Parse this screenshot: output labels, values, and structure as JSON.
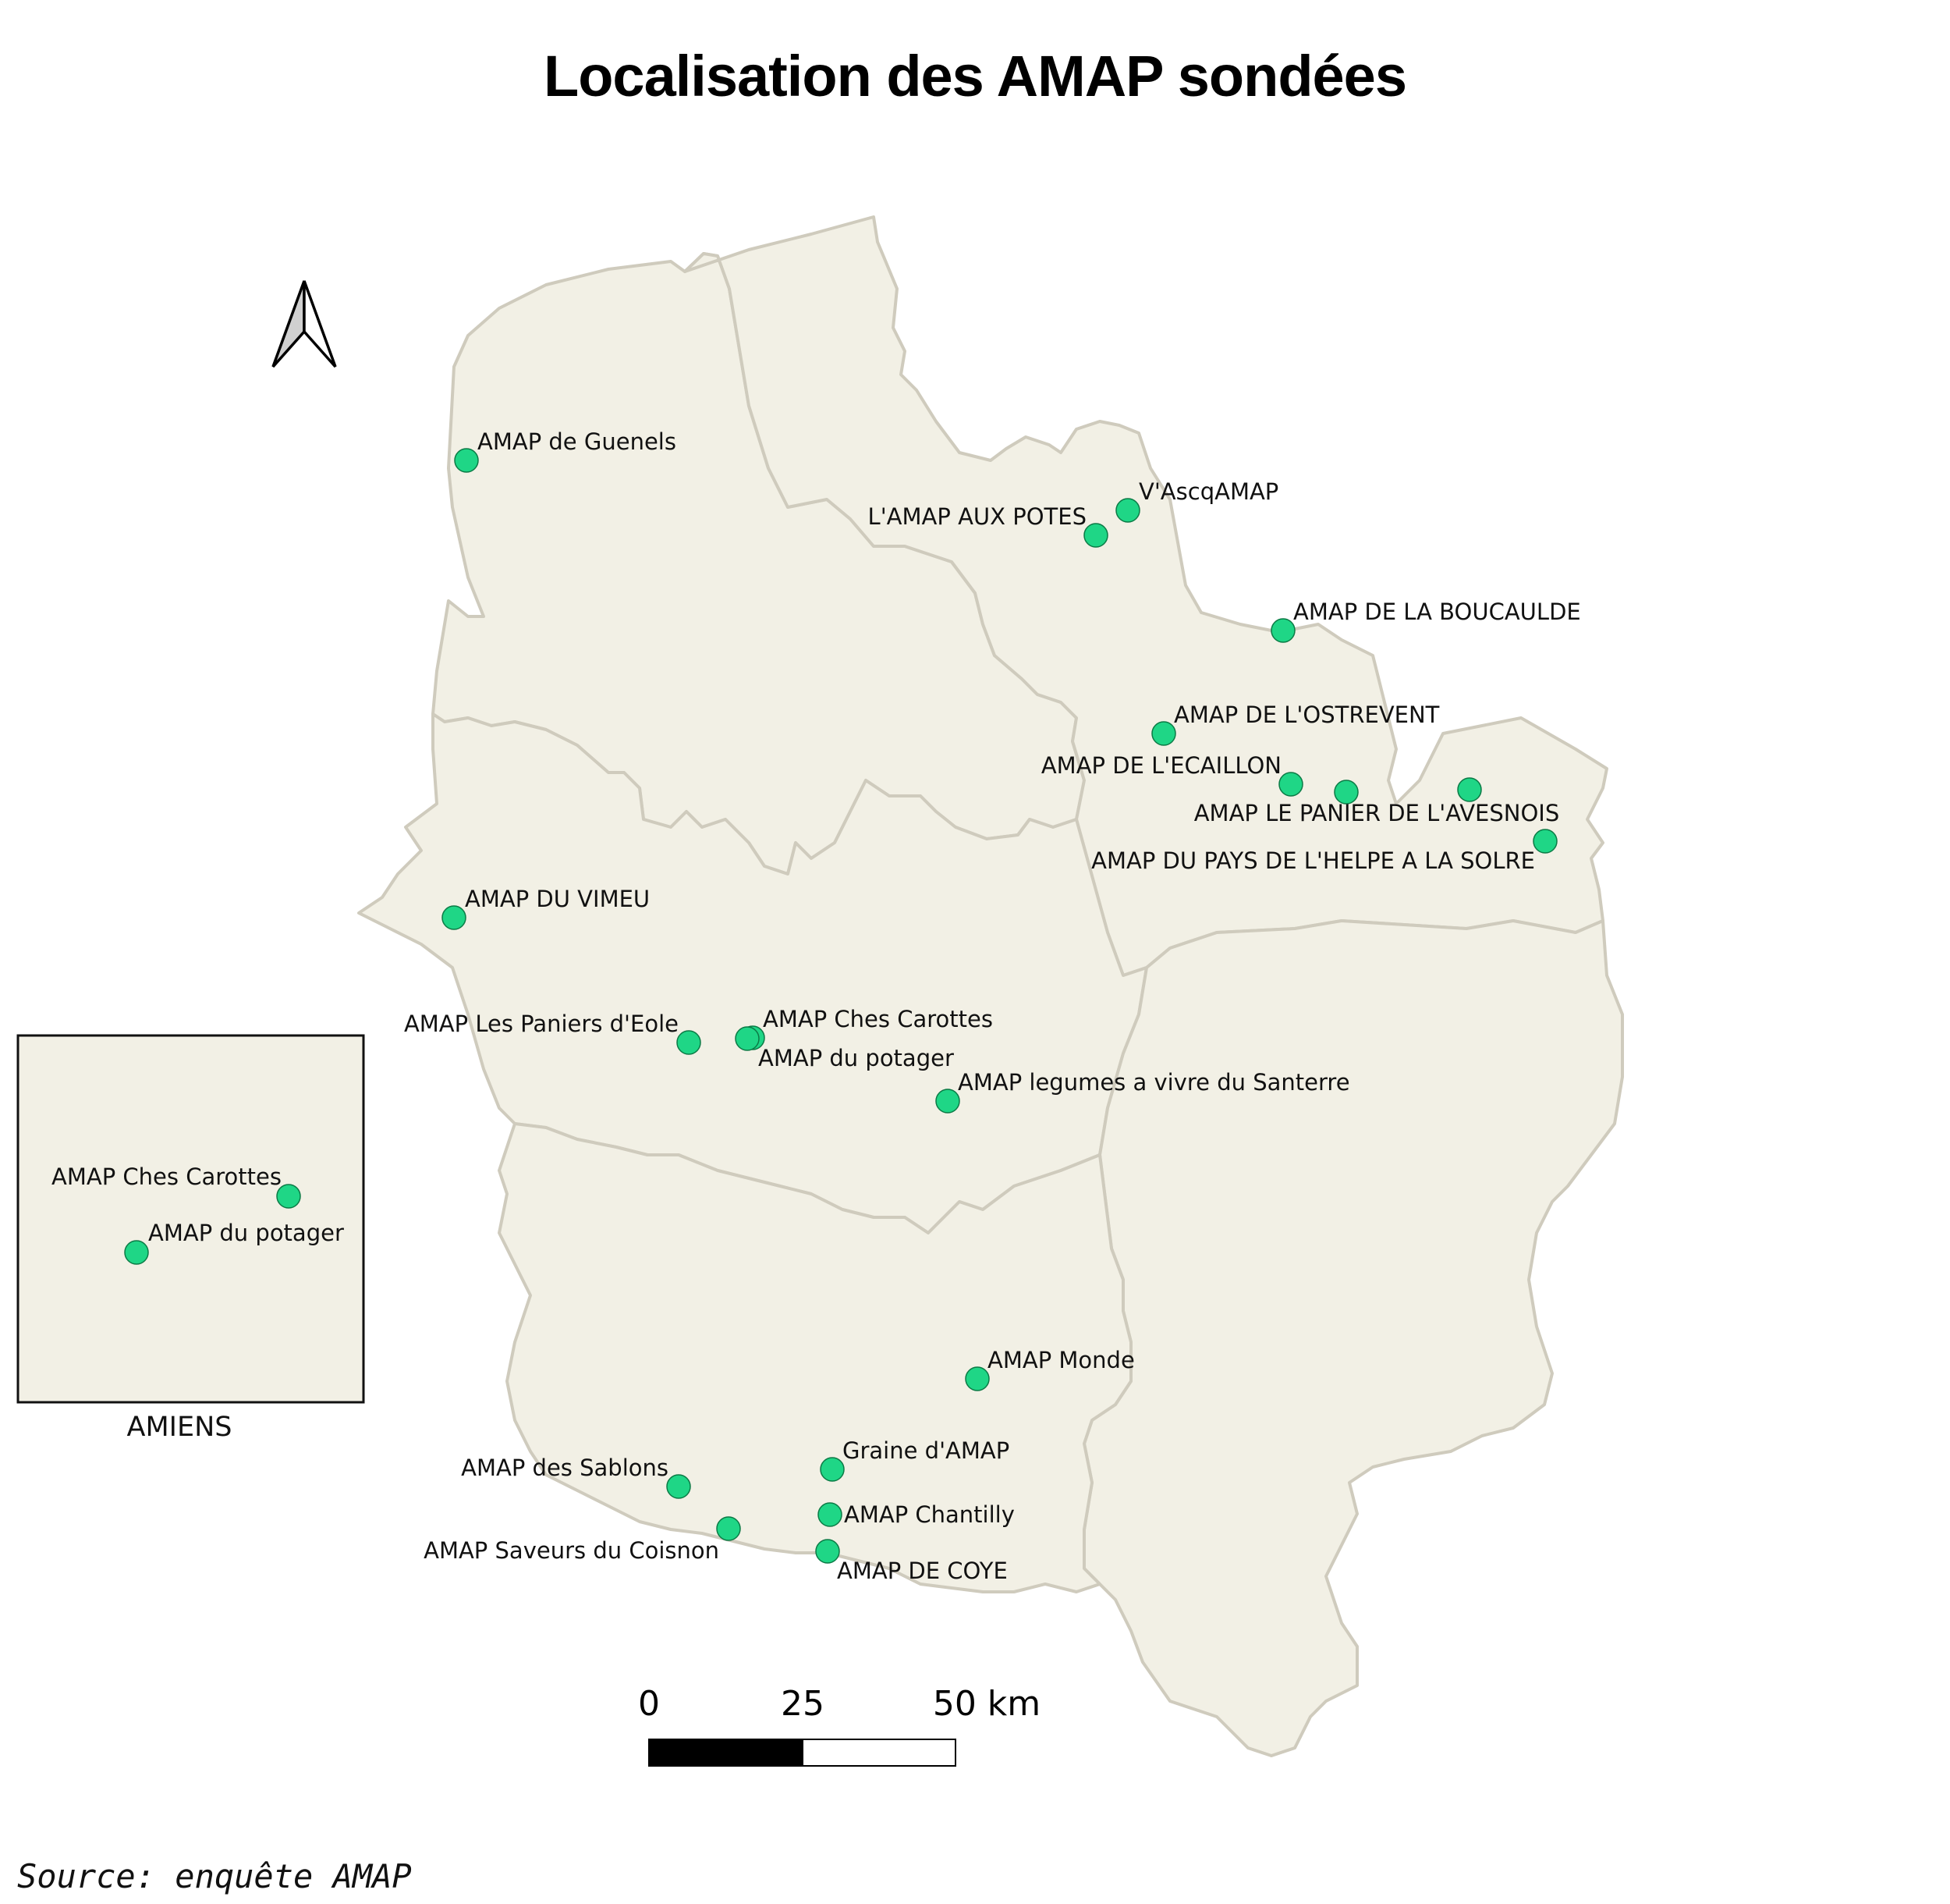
{
  "title": "Localisation des AMAP sondées",
  "source": "Source: enquête AMAP",
  "inset": {
    "caption": "AMIENS",
    "sites": [
      {
        "id": "inset-ches-carottes",
        "name": "AMAP Ches Carottes"
      },
      {
        "id": "inset-potager",
        "name": "AMAP du potager"
      }
    ]
  },
  "scale_bar": {
    "labels": [
      "0",
      "25",
      "50 km"
    ]
  },
  "north_arrow": {
    "icon": "north-arrow-icon"
  },
  "colors": {
    "site_fill": "#1fd686",
    "department_fill": "#f2f0e5",
    "border": "#cfcbbd"
  },
  "sites": [
    {
      "id": "guenels",
      "name": "AMAP de Guenels"
    },
    {
      "id": "aux-potes",
      "name": "L'AMAP AUX POTES"
    },
    {
      "id": "vascq",
      "name": "V'AscqAMAP"
    },
    {
      "id": "boucaulde",
      "name": "AMAP DE LA BOUCAULDE"
    },
    {
      "id": "ostrevent",
      "name": "AMAP DE L'OSTREVENT"
    },
    {
      "id": "ecaillon",
      "name": "AMAP DE L'ECAILLON"
    },
    {
      "id": "avesnois",
      "name": "AMAP LE PANIER DE L'AVESNOIS"
    },
    {
      "id": "helpe",
      "name": "AMAP DU PAYS DE L'HELPE A LA SOLRE"
    },
    {
      "id": "vimeu",
      "name": "AMAP DU VIMEU"
    },
    {
      "id": "paniers-eole",
      "name": "AMAP Les Paniers d'Eole"
    },
    {
      "id": "ches-carottes",
      "name": "AMAP Ches Carottes"
    },
    {
      "id": "potager",
      "name": "AMAP du potager"
    },
    {
      "id": "santerre",
      "name": "AMAP legumes a vivre du Santerre"
    },
    {
      "id": "monde",
      "name": "AMAP Monde"
    },
    {
      "id": "graine",
      "name": "Graine d'AMAP"
    },
    {
      "id": "sablons",
      "name": "AMAP des Sablons"
    },
    {
      "id": "chantilly",
      "name": "AMAP Chantilly"
    },
    {
      "id": "coisnon",
      "name": "AMAP Saveurs du Coisnon"
    },
    {
      "id": "coye",
      "name": "AMAP DE COYE"
    }
  ]
}
